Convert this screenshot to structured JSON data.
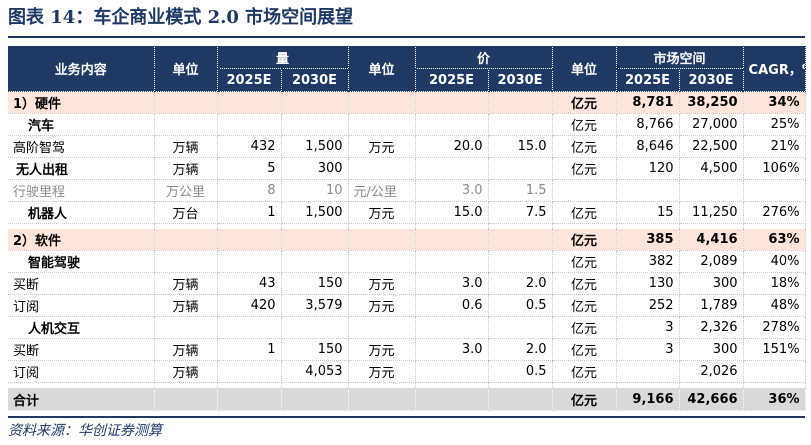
{
  "title": "图表 14：车企商业模式 2.0 市场空间展望",
  "source": "资料来源：华创证券测算",
  "headers": {
    "business": "业务内容",
    "unit1": "单位",
    "volume": "量",
    "unit2": "单位",
    "price": "价",
    "unit3": "单位",
    "market": "市场空间",
    "cagr": "CAGR，%",
    "y2025_a": "2025E",
    "y2030_a": "2030E",
    "y2025_b": "2025E",
    "y2030_b": "2030E",
    "y2025_c": "2025E",
    "y2030_c": "2030E"
  },
  "rows": [
    {
      "name": "1）硬件",
      "u1": "",
      "v25": "",
      "v30": "",
      "u2": "",
      "p25": "",
      "p30": "",
      "u3": "亿元",
      "m25": "8,781",
      "m30": "38,250",
      "cagr": "34%"
    },
    {
      "name": "汽车",
      "u1": "",
      "v25": "",
      "v30": "",
      "u2": "",
      "p25": "",
      "p30": "",
      "u3": "亿元",
      "m25": "8,766",
      "m30": "27,000",
      "cagr": "25%"
    },
    {
      "name": "高阶智驾",
      "u1": "万辆",
      "v25": "432",
      "v30": "1,500",
      "u2": "万元",
      "p25": "20.0",
      "p30": "15.0",
      "u3": "亿元",
      "m25": "8,646",
      "m30": "22,500",
      "cagr": "21%"
    },
    {
      "name": "无人出租",
      "u1": "万辆",
      "v25": "5",
      "v30": "300",
      "u2": "",
      "p25": "",
      "p30": "",
      "u3": "亿元",
      "m25": "120",
      "m30": "4,500",
      "cagr": "106%"
    },
    {
      "name": "行驶里程",
      "u1": "万公里",
      "v25": "8",
      "v30": "10",
      "u2": "元/公里",
      "p25": "3.0",
      "p30": "1.5",
      "u3": "",
      "m25": "",
      "m30": "",
      "cagr": ""
    },
    {
      "name": "机器人",
      "u1": "万台",
      "v25": "1",
      "v30": "1,500",
      "u2": "万元",
      "p25": "15.0",
      "p30": "7.5",
      "u3": "亿元",
      "m25": "15",
      "m30": "11,250",
      "cagr": "276%"
    },
    {
      "name": "2）软件",
      "u1": "",
      "v25": "",
      "v30": "",
      "u2": "",
      "p25": "",
      "p30": "",
      "u3": "亿元",
      "m25": "385",
      "m30": "4,416",
      "cagr": "63%"
    },
    {
      "name": "智能驾驶",
      "u1": "",
      "v25": "",
      "v30": "",
      "u2": "",
      "p25": "",
      "p30": "",
      "u3": "亿元",
      "m25": "382",
      "m30": "2,089",
      "cagr": "40%"
    },
    {
      "name": "买断",
      "u1": "万辆",
      "v25": "43",
      "v30": "150",
      "u2": "万元",
      "p25": "3.0",
      "p30": "2.0",
      "u3": "亿元",
      "m25": "130",
      "m30": "300",
      "cagr": "18%"
    },
    {
      "name": "订阅",
      "u1": "万辆",
      "v25": "420",
      "v30": "3,579",
      "u2": "万元",
      "p25": "0.6",
      "p30": "0.5",
      "u3": "亿元",
      "m25": "252",
      "m30": "1,789",
      "cagr": "48%"
    },
    {
      "name": "人机交互",
      "u1": "",
      "v25": "",
      "v30": "",
      "u2": "",
      "p25": "",
      "p30": "",
      "u3": "亿元",
      "m25": "3",
      "m30": "2,326",
      "cagr": "278%"
    },
    {
      "name": "买断",
      "u1": "万辆",
      "v25": "1",
      "v30": "150",
      "u2": "万元",
      "p25": "3.0",
      "p30": "2.0",
      "u3": "亿元",
      "m25": "3",
      "m30": "300",
      "cagr": "151%"
    },
    {
      "name": "订阅",
      "u1": "万辆",
      "v25": "",
      "v30": "4,053",
      "u2": "万元",
      "p25": "",
      "p30": "0.5",
      "u3": "亿元",
      "m25": "",
      "m30": "2,026",
      "cagr": ""
    },
    {
      "name": "合计",
      "u1": "",
      "v25": "",
      "v30": "",
      "u2": "",
      "p25": "",
      "p30": "",
      "u3": "亿元",
      "m25": "9,166",
      "m30": "42,666",
      "cagr": "36%"
    }
  ]
}
